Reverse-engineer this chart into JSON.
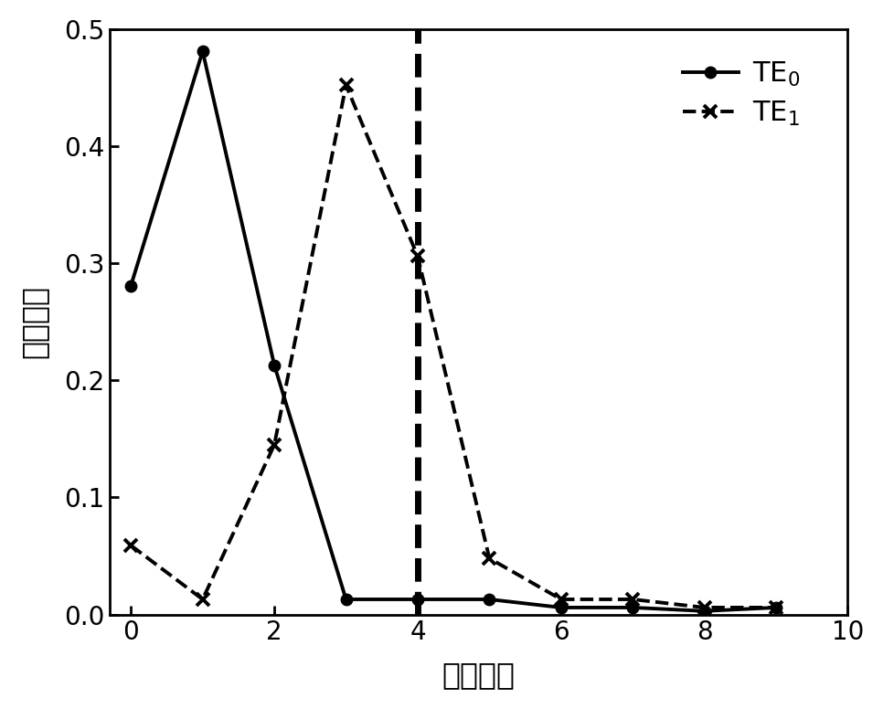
{
  "te0_x": [
    0,
    1,
    2,
    3,
    4,
    5,
    6,
    7,
    8,
    9
  ],
  "te0_y": [
    0.281,
    0.481,
    0.213,
    0.013,
    0.013,
    0.013,
    0.006,
    0.006,
    0.003,
    0.006
  ],
  "te1_x": [
    0,
    1,
    2,
    3,
    4,
    5,
    6,
    7,
    8,
    9
  ],
  "te1_y": [
    0.059,
    0.013,
    0.145,
    0.452,
    0.306,
    0.048,
    0.013,
    0.013,
    0.006,
    0.006
  ],
  "vline_x": 4.0,
  "xlabel": "导模阶数",
  "ylabel": "激励系数",
  "xlim": [
    -0.3,
    10
  ],
  "ylim": [
    0,
    0.5
  ],
  "yticks": [
    0.0,
    0.1,
    0.2,
    0.3,
    0.4,
    0.5
  ],
  "xticks": [
    0,
    2,
    4,
    6,
    8,
    10
  ],
  "te0_label": "TE$_0$",
  "te1_label": "TE$_1$",
  "line_color": "#000000",
  "background_color": "#ffffff"
}
